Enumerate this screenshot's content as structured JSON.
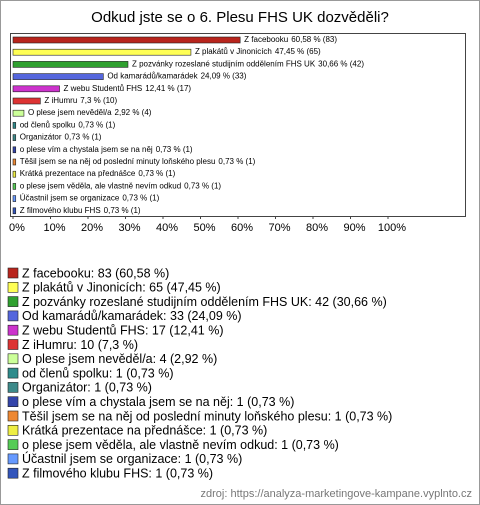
{
  "chart_data": {
    "type": "bar",
    "orientation": "horizontal",
    "title": "Odkud jste se o 6. Plesu FHS UK dozvěděli?",
    "categories": [
      "Z facebooku",
      "Z plakátů v Jinonicích",
      "Z pozvánky rozeslané studijním oddělením FHS UK",
      "Od kamarádů/kamarádek",
      "Z webu Studentů FHS",
      "Z iHumru",
      "O plese jsem nevěděl/a",
      "od členů spolku",
      "Organizátor",
      "o plese vím a chystala jsem se na něj",
      "Těšil jsem se na něj od poslední minuty loňského plesu",
      "Krátká prezentace na přednášce",
      "o plese jsem věděla, ale vlastně nevím odkud",
      "Účastnil jsem se organizace",
      "Z filmového klubu FHS"
    ],
    "values": [
      60.58,
      47.45,
      30.66,
      24.09,
      12.41,
      7.3,
      2.92,
      0.73,
      0.73,
      0.73,
      0.73,
      0.73,
      0.73,
      0.73,
      0.73
    ],
    "value_labels": [
      "60,58 % (83)",
      "47,45 % (65)",
      "30,66 % (42)",
      "24,09 % (33)",
      "12,41 % (17)",
      "7,3 % (10)",
      "2,92 % (4)",
      "0,73 % (1)",
      "0,73 % (1)",
      "0,73 % (1)",
      "0,73 % (1)",
      "0,73 % (1)",
      "0,73 % (1)",
      "0,73 % (1)",
      "0,73 % (1)"
    ],
    "legend_labels": [
      "Z facebooku: 83 (60,58 %)",
      "Z plakátů v Jinonicích: 65 (47,45 %)",
      "Z pozvánky rozeslané studijním oddělením FHS UK: 42 (30,66 %)",
      "Od kamarádů/kamarádek: 33 (24,09 %)",
      "Z webu Studentů FHS: 17 (12,41 %)",
      "Z iHumru: 10 (7,3 %)",
      "O plese jsem nevěděl/a: 4 (2,92 %)",
      "od členů spolku: 1 (0,73 %)",
      "Organizátor: 1 (0,73 %)",
      "o plese vím a chystala jsem se na něj: 1 (0,73 %)",
      "Těšil jsem se na něj od poslední minuty loňského plesu: 1 (0,73 %)",
      "Krátká prezentace na přednášce: 1 (0,73 %)",
      "o plese jsem věděla, ale vlastně nevím odkud: 1 (0,73 %)",
      "Účastnil jsem se organizace: 1 (0,73 %)",
      "Z filmového klubu FHS: 1 (0,73 %)"
    ],
    "colors": [
      "#b8251d",
      "#ffff55",
      "#2fa02f",
      "#5566dd",
      "#cc33cc",
      "#dd3333",
      "#ccff99",
      "#2e8b8b",
      "#3d8a8a",
      "#3344aa",
      "#ee8833",
      "#eeee44",
      "#55cc55",
      "#6699ff",
      "#3355bb"
    ],
    "xlim": [
      0,
      100
    ],
    "xticks": [
      {
        "value": 0,
        "label": "0%"
      },
      {
        "value": 10,
        "label": "10%"
      },
      {
        "value": 20,
        "label": "20%"
      },
      {
        "value": 30,
        "label": "30%"
      },
      {
        "value": 40,
        "label": "40%"
      },
      {
        "value": 50,
        "label": "50%"
      },
      {
        "value": 60,
        "label": "60%"
      },
      {
        "value": 70,
        "label": "70%"
      },
      {
        "value": 80,
        "label": "80%"
      },
      {
        "value": 90,
        "label": "90%"
      },
      {
        "value": 100,
        "label": "100%"
      }
    ],
    "source": "zdroj: https://analyza-marketingove-kampane.vyplnto.cz"
  }
}
